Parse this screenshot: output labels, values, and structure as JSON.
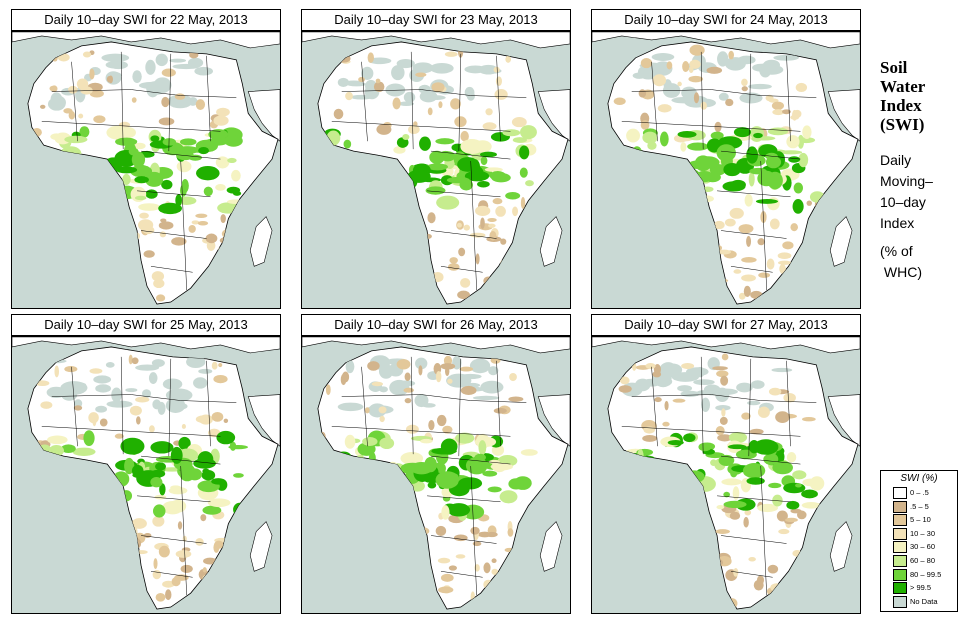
{
  "panels": [
    {
      "title": "Daily 10–day SWI for  22 May, 2013"
    },
    {
      "title": "Daily 10–day SWI for  23 May, 2013"
    },
    {
      "title": "Daily 10–day SWI for  24 May, 2013"
    },
    {
      "title": "Daily 10–day SWI for  25 May, 2013"
    },
    {
      "title": "Daily 10–day SWI for  26 May, 2013"
    },
    {
      "title": "Daily 10–day SWI for  27 May, 2013"
    }
  ],
  "side": {
    "title_lines": [
      "Soil",
      "Water",
      "Index",
      "(SWI)"
    ],
    "sub_lines": [
      "Daily",
      "Moving–",
      "10–day",
      "Index"
    ],
    "unit_lines": [
      "(% of",
      " WHC)"
    ]
  },
  "legend": {
    "title": "SWI (%)",
    "items": [
      {
        "label": "0 – .5",
        "color": "#ffffff"
      },
      {
        "label": ".5 – 5",
        "color": "#d2b48c"
      },
      {
        "label": "5 – 10",
        "color": "#e3c89a"
      },
      {
        "label": "10 – 30",
        "color": "#f3e2b8"
      },
      {
        "label": "30 – 60",
        "color": "#f5f3c2"
      },
      {
        "label": "60 – 80",
        "color": "#c6ec8e"
      },
      {
        "label": "80 – 99.5",
        "color": "#6fd43a"
      },
      {
        "label": "> 99.5",
        "color": "#20b000"
      },
      {
        "label": "No Data",
        "color": "#c9d9d4"
      }
    ]
  }
}
